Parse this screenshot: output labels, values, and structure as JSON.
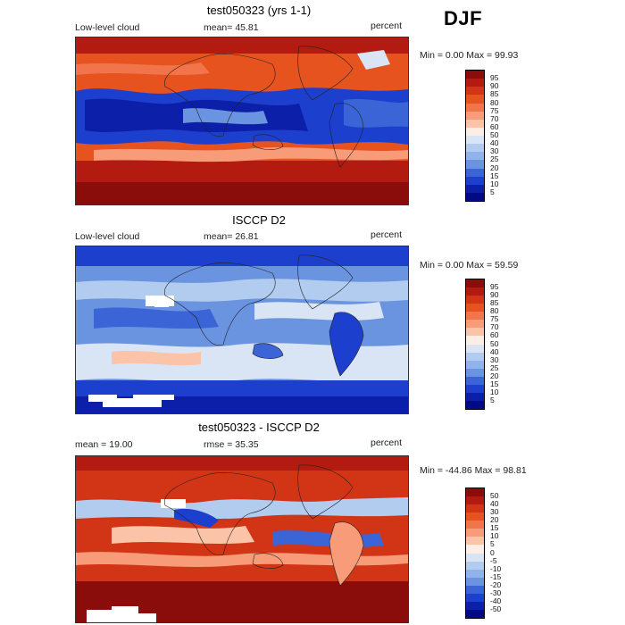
{
  "season": "DJF",
  "panels": [
    {
      "title": "test050323 (yrs 1-1)",
      "left_label": "Low-level cloud",
      "mean_label": "mean=  45.81",
      "units": "percent",
      "minmax": "Min =   0.00 Max =  99.93",
      "levels": [
        "95",
        "90",
        "85",
        "80",
        "75",
        "70",
        "60",
        "50",
        "40",
        "30",
        "25",
        "20",
        "15",
        "10",
        "5"
      ],
      "colors": [
        "#8b0d0b",
        "#b31a10",
        "#d13516",
        "#e6531f",
        "#f2744a",
        "#f79b79",
        "#fbc4a8",
        "#fbeee4",
        "#d9e5f5",
        "#b1ccef",
        "#8fb3ea",
        "#6a93e0",
        "#3b64d6",
        "#1d3fcd",
        "#0b1fa8",
        "#000a84"
      ]
    },
    {
      "title": "ISCCP D2",
      "left_label": "Low-level cloud",
      "mean_label": "mean=  26.81",
      "units": "percent",
      "minmax": "Min =   0.00 Max =  59.59",
      "levels": [
        "95",
        "90",
        "85",
        "80",
        "75",
        "70",
        "60",
        "50",
        "40",
        "30",
        "25",
        "20",
        "15",
        "10",
        "5"
      ],
      "colors": [
        "#8b0d0b",
        "#b31a10",
        "#d13516",
        "#e6531f",
        "#f2744a",
        "#f79b79",
        "#fbc4a8",
        "#fbeee4",
        "#d9e5f5",
        "#b1ccef",
        "#8fb3ea",
        "#6a93e0",
        "#3b64d6",
        "#1d3fcd",
        "#0b1fa8",
        "#000a84"
      ]
    },
    {
      "title": "test050323 - ISCCP D2",
      "left_label": "mean =  19.00",
      "mean_label": "rmse =  35.35",
      "units": "percent",
      "minmax": "Min = -44.86 Max =  98.81",
      "levels": [
        "50",
        "40",
        "30",
        "20",
        "15",
        "10",
        "5",
        "0",
        "-5",
        "-10",
        "-15",
        "-20",
        "-30",
        "-40",
        "-50"
      ],
      "colors": [
        "#8b0d0b",
        "#b31a10",
        "#d13516",
        "#e6531f",
        "#f2744a",
        "#f79b79",
        "#fbc4a8",
        "#fbeee4",
        "#d9e5f5",
        "#b1ccef",
        "#8fb3ea",
        "#6a93e0",
        "#3b64d6",
        "#1d3fcd",
        "#0b1fa8",
        "#000a84"
      ]
    }
  ]
}
